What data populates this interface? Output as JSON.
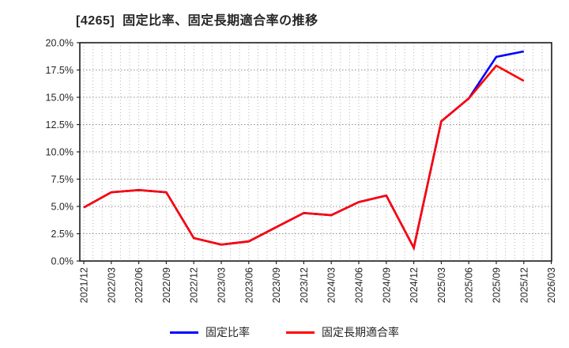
{
  "chart_data": {
    "type": "line",
    "title": "[4265]  固定比率、固定長期適合率の推移",
    "x_labels": [
      "2021/12",
      "2022/03",
      "2022/06",
      "2022/09",
      "2022/12",
      "2023/03",
      "2023/06",
      "2023/09",
      "2023/12",
      "2024/03",
      "2024/06",
      "2024/09",
      "2024/12",
      "2025/03",
      "2025/06",
      "2025/09",
      "2025/12",
      "2026/03"
    ],
    "series": [
      {
        "name": "固定比率",
        "color": "#0000ff",
        "values": [
          4.9,
          6.3,
          6.5,
          6.3,
          2.1,
          1.5,
          1.8,
          3.1,
          4.4,
          4.2,
          5.4,
          6.0,
          1.2,
          12.8,
          14.9,
          18.7,
          19.2
        ]
      },
      {
        "name": "固定長期適合率",
        "color": "#ff0000",
        "values": [
          4.9,
          6.3,
          6.5,
          6.3,
          2.1,
          1.5,
          1.8,
          3.1,
          4.4,
          4.2,
          5.4,
          6.0,
          1.2,
          12.8,
          14.9,
          17.9,
          16.5
        ]
      }
    ],
    "ylim": [
      0,
      20
    ],
    "ytick_step": 2.5,
    "ytick_suffix": "%",
    "grid": true,
    "legend_position": "bottom"
  }
}
